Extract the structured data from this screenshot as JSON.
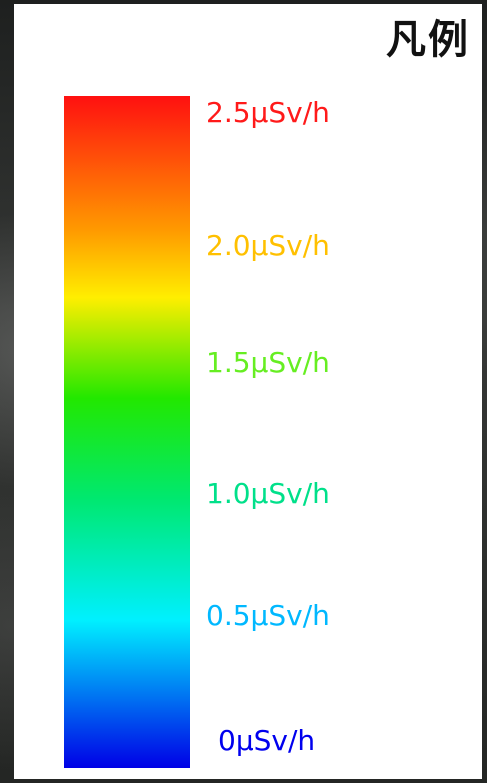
{
  "legend": {
    "title": "凡例",
    "stops": [
      {
        "label": "2.5μSv/h",
        "value": 2.5,
        "color": "#ff1a1a"
      },
      {
        "label": "2.0μSv/h",
        "value": 2.0,
        "color": "#ffc000"
      },
      {
        "label": "1.5μSv/h",
        "value": 1.5,
        "color": "#66ee22"
      },
      {
        "label": "1.0μSv/h",
        "value": 1.0,
        "color": "#00e08a"
      },
      {
        "label": "0.5μSv/h",
        "value": 0.5,
        "color": "#00b8ff"
      },
      {
        "label": "0μSv/h",
        "value": 0,
        "color": "#0000ee"
      }
    ]
  }
}
